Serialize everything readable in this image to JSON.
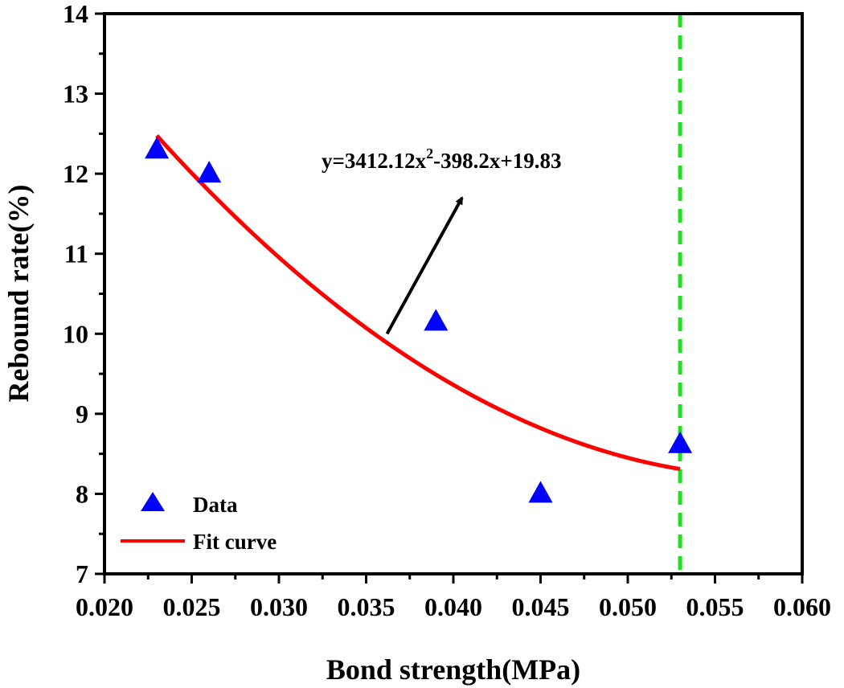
{
  "chart_data": {
    "type": "scatter",
    "title": "",
    "xlabel": "Bond strength(MPa)",
    "ylabel": "Rebound rate(%)",
    "xlim": [
      0.02,
      0.06
    ],
    "ylim": [
      7,
      14
    ],
    "x_ticks": [
      "0.020",
      "0.025",
      "0.030",
      "0.035",
      "0.040",
      "0.045",
      "0.050",
      "0.055",
      "0.060"
    ],
    "y_ticks": [
      "7",
      "8",
      "9",
      "10",
      "11",
      "12",
      "13",
      "14"
    ],
    "grid": false,
    "series": [
      {
        "name": "Data",
        "kind": "scatter",
        "marker": "triangle",
        "color": "#0000FF",
        "points": [
          {
            "x": 0.023,
            "y": 12.3
          },
          {
            "x": 0.026,
            "y": 12.0
          },
          {
            "x": 0.039,
            "y": 10.15
          },
          {
            "x": 0.045,
            "y": 8.0
          },
          {
            "x": 0.053,
            "y": 8.62
          }
        ]
      },
      {
        "name": "Fit curve",
        "kind": "line",
        "color": "#FF0000",
        "x_range": [
          0.023,
          0.053
        ],
        "equation": {
          "a": 3412.12,
          "b": -398.2,
          "c": 19.83
        }
      }
    ],
    "reference_line": {
      "orientation": "vertical",
      "x": 0.053,
      "color": "#22DD22",
      "style": "dashed"
    },
    "annotation": {
      "text_main": "y=3412.12x",
      "text_sup": "2",
      "text_rest": "-398.2x+19.83",
      "arrow_from": {
        "x": 0.0362,
        "y": 10.0
      },
      "arrow_to": {
        "x": 0.0405,
        "y": 11.7
      }
    },
    "legend": {
      "placement": "bottom-left",
      "items": [
        {
          "label": "Data",
          "marker": "triangle",
          "color": "#0000FF"
        },
        {
          "label": "Fit curve",
          "marker": "line",
          "color": "#FF0000"
        }
      ]
    }
  }
}
